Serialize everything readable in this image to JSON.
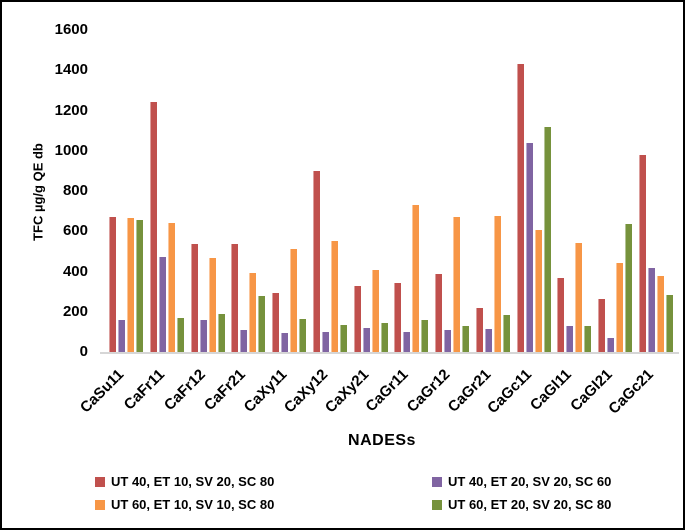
{
  "chart_data": {
    "type": "bar",
    "title": "",
    "xlabel": "NADESs",
    "ylabel": "TFC µg/g QE db",
    "ylim": [
      0,
      1600
    ],
    "ytick_step": 200,
    "grid": false,
    "legend_position": "bottom",
    "categories": [
      "CaSu11",
      "CaFr11",
      "CaFr12",
      "CaFr21",
      "CaXy11",
      "CaXy12",
      "CaXy21",
      "CaGr11",
      "CaGr12",
      "CaGr21",
      "CaGc11",
      "CaGl11",
      "CaGl21",
      "CaGc21"
    ],
    "series": [
      {
        "name": "UT 40, ET 10, SV 20, SC 80",
        "color": "#C0504D",
        "values": [
          670,
          1240,
          535,
          535,
          295,
          900,
          330,
          345,
          390,
          220,
          1430,
          370,
          265,
          980
        ]
      },
      {
        "name": "UT 40, ET 20, SV 20, SC 60",
        "color": "#8064A2",
        "values": [
          160,
          470,
          160,
          110,
          95,
          100,
          120,
          100,
          110,
          115,
          1040,
          130,
          70,
          415
        ]
      },
      {
        "name": "UT 60, ET 10, SV 10, SC 80",
        "color": "#F79646",
        "values": [
          665,
          640,
          465,
          395,
          510,
          550,
          405,
          730,
          670,
          675,
          605,
          540,
          440,
          380
        ]
      },
      {
        "name": "UT 60, ET 20, SV 20, SC 80",
        "color": "#76923C",
        "values": [
          655,
          170,
          190,
          280,
          165,
          135,
          145,
          160,
          130,
          185,
          1120,
          130,
          635,
          285
        ]
      }
    ],
    "axis_line_color": "#d6d6d6",
    "text_color": "#000000"
  }
}
